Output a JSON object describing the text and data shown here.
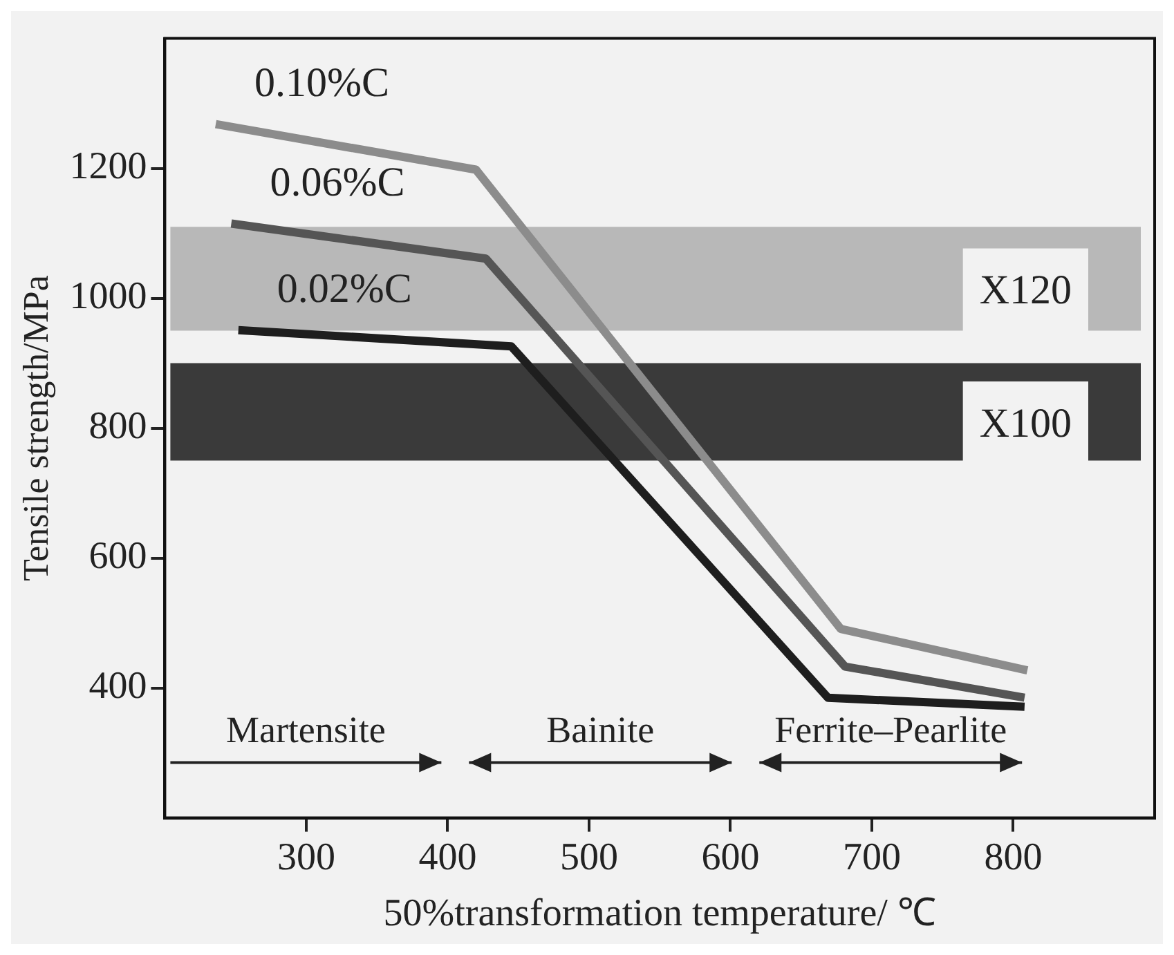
{
  "chart_data": {
    "type": "line",
    "xlabel": "50%transformation temperature/ ℃",
    "ylabel": "Tensile strength/MPa",
    "xlim": [
      200,
      900
    ],
    "xticks": [
      300,
      400,
      500,
      600,
      700,
      800
    ],
    "ylim": [
      200,
      1400
    ],
    "yticks": [
      400,
      600,
      800,
      1000,
      1200
    ],
    "grid": false,
    "legend": false,
    "marker": "none",
    "line_style": "solid",
    "series": [
      {
        "name": "0.10%C",
        "color": "#8c8c8c",
        "x": [
          236,
          420,
          678,
          810
        ],
        "values": [
          1268,
          1198,
          491,
          427
        ]
      },
      {
        "name": "0.06%C",
        "color": "#555555",
        "x": [
          247,
          427,
          681,
          808
        ],
        "values": [
          1115,
          1061,
          433,
          385
        ]
      },
      {
        "name": "0.02%C",
        "color": "#1e1e1e",
        "x": [
          252,
          445,
          669,
          808
        ],
        "values": [
          951,
          926,
          385,
          371
        ]
      }
    ],
    "bands": [
      {
        "axis": "y",
        "from": 950,
        "to": 1110,
        "label": "X120",
        "color": "#b8b8b8"
      },
      {
        "axis": "y",
        "from": 750,
        "to": 900,
        "label": "X100",
        "color": "#3a3a3a"
      }
    ],
    "annotations": [
      "Martensite",
      "Bainite",
      "Ferrite–Pearlite"
    ]
  }
}
